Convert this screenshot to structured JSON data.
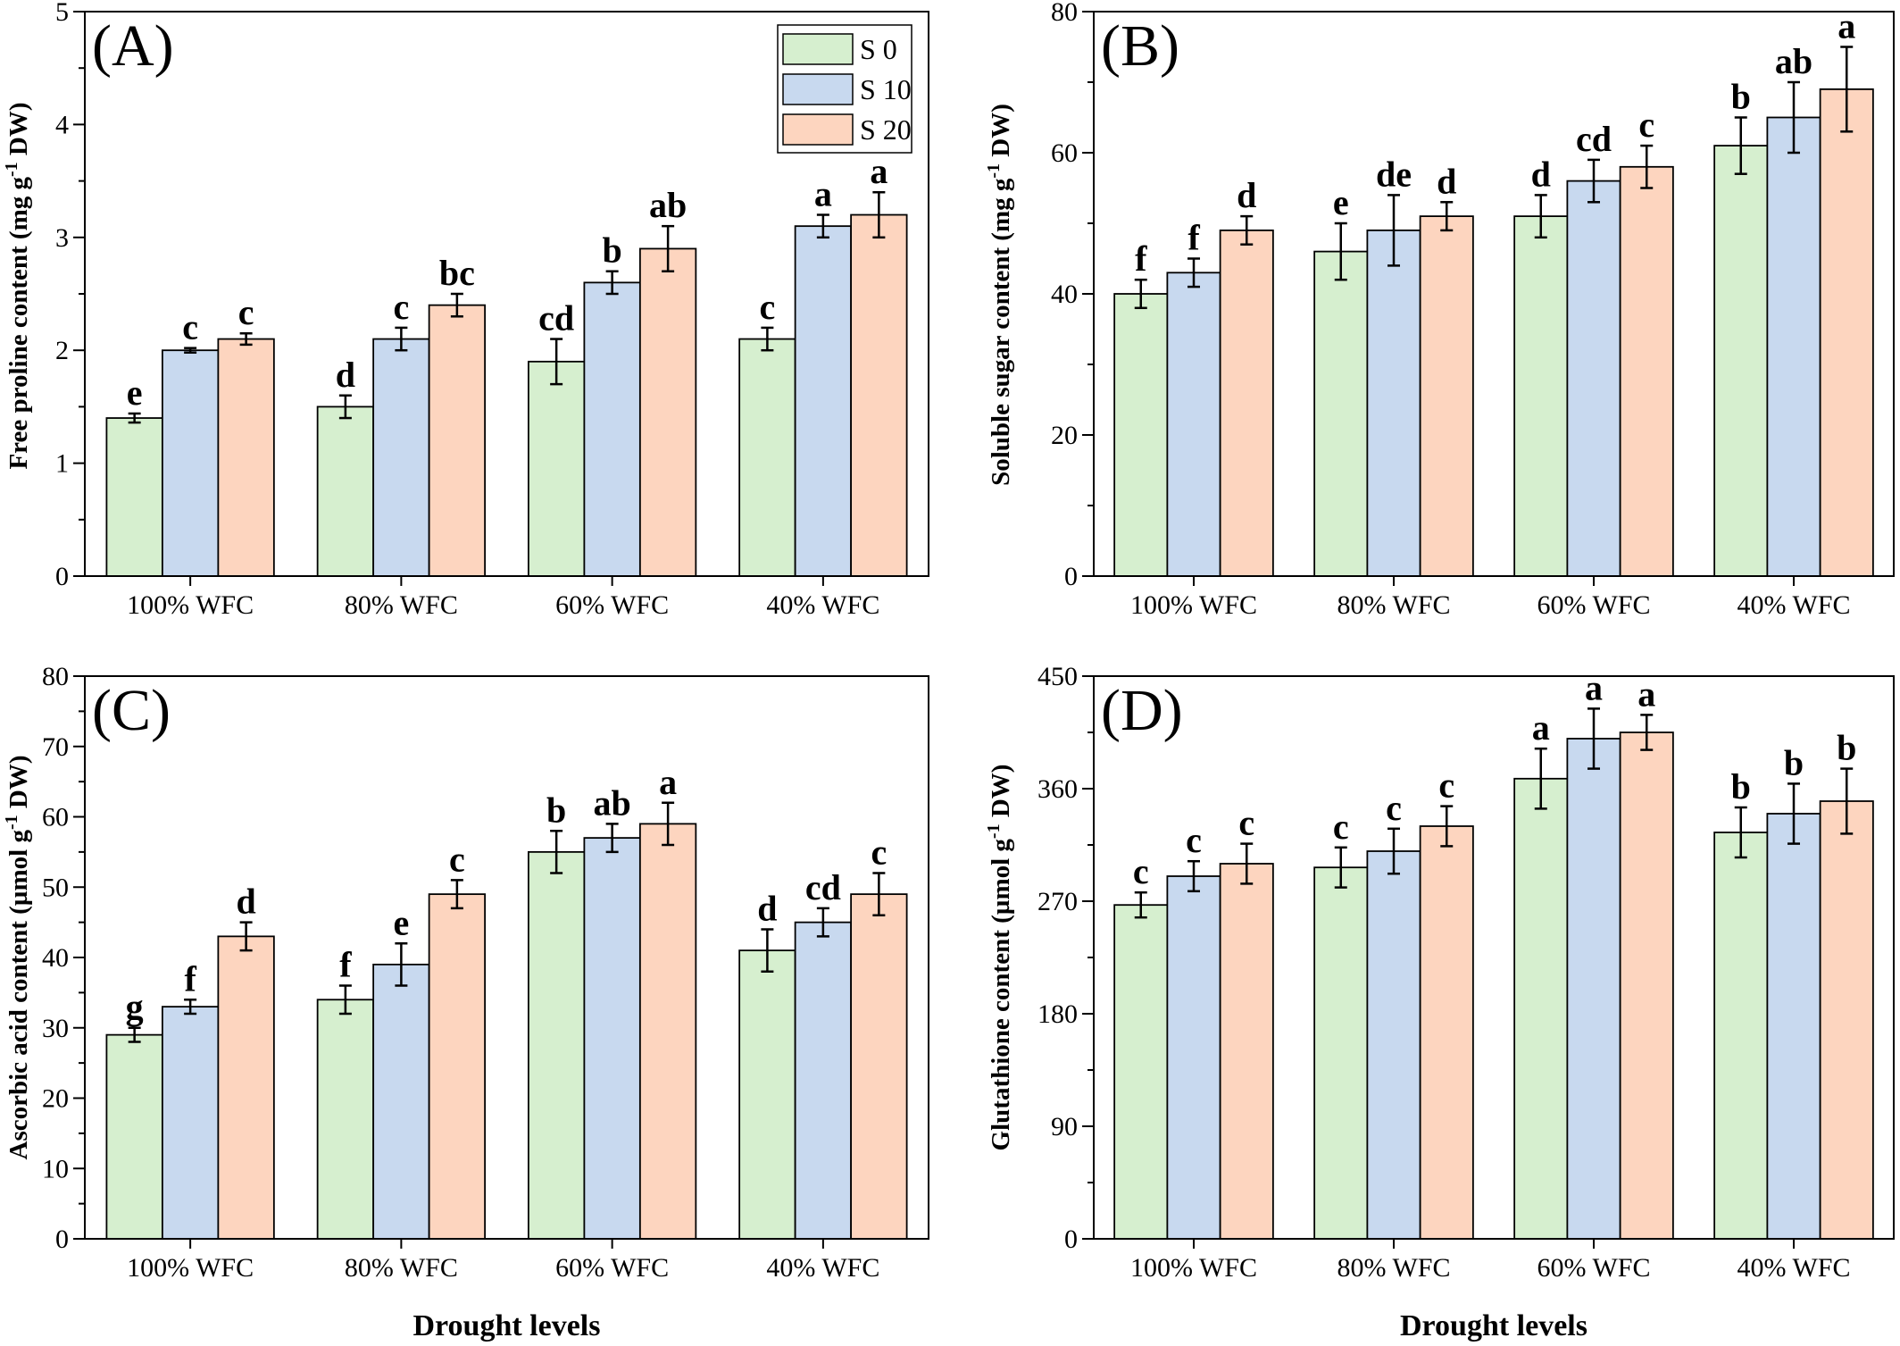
{
  "chart_data": [
    {
      "type": "bar",
      "panel_label": "(A)",
      "categories": [
        "100% WFC",
        "80% WFC",
        "60% WFC",
        "40% WFC"
      ],
      "ylabel": "Free proline content (mg g",
      "ylabel_sup": "-1",
      "ylabel_tail": " DW)",
      "xlabel": "",
      "ylim": [
        0,
        5
      ],
      "yticks": [
        0,
        1,
        2,
        3,
        4,
        5
      ],
      "legend": true,
      "legend_position": "top-right",
      "series": [
        {
          "name": "S 0",
          "values": [
            1.4,
            1.5,
            1.9,
            2.1
          ],
          "errors": [
            0.04,
            0.1,
            0.2,
            0.1
          ],
          "letters": [
            "e",
            "d",
            "cd",
            "c"
          ]
        },
        {
          "name": "S 10",
          "values": [
            2.0,
            2.1,
            2.6,
            3.1
          ],
          "errors": [
            0.02,
            0.1,
            0.1,
            0.1
          ],
          "letters": [
            "c",
            "c",
            "b",
            "a"
          ]
        },
        {
          "name": "S 20",
          "values": [
            2.1,
            2.4,
            2.9,
            3.2
          ],
          "errors": [
            0.05,
            0.1,
            0.2,
            0.2
          ],
          "letters": [
            "c",
            "bc",
            "ab",
            "a"
          ]
        }
      ]
    },
    {
      "type": "bar",
      "panel_label": "(B)",
      "categories": [
        "100% WFC",
        "80% WFC",
        "60% WFC",
        "40% WFC"
      ],
      "ylabel": "Soluble sugar content (mg g",
      "ylabel_sup": "-1",
      "ylabel_tail": " DW)",
      "xlabel": "",
      "ylim": [
        0,
        80
      ],
      "yticks": [
        0,
        20,
        40,
        60,
        80
      ],
      "legend": false,
      "series": [
        {
          "name": "S 0",
          "values": [
            40,
            46,
            51,
            61
          ],
          "errors": [
            2,
            4,
            3,
            4
          ],
          "letters": [
            "f",
            "e",
            "d",
            "b"
          ]
        },
        {
          "name": "S 10",
          "values": [
            43,
            49,
            56,
            65
          ],
          "errors": [
            2,
            5,
            3,
            5
          ],
          "letters": [
            "f",
            "de",
            "cd",
            "ab"
          ]
        },
        {
          "name": "S 20",
          "values": [
            49,
            51,
            58,
            69
          ],
          "errors": [
            2,
            2,
            3,
            6
          ],
          "letters": [
            "d",
            "d",
            "c",
            "a"
          ]
        }
      ]
    },
    {
      "type": "bar",
      "panel_label": "(C)",
      "categories": [
        "100% WFC",
        "80% WFC",
        "60% WFC",
        "40% WFC"
      ],
      "ylabel": "Ascorbic acid content (µmol g",
      "ylabel_sup": "-1",
      "ylabel_tail": " DW)",
      "xlabel": "Drought levels",
      "ylim": [
        0,
        80
      ],
      "yticks": [
        0,
        10,
        20,
        30,
        40,
        50,
        60,
        70,
        80
      ],
      "legend": false,
      "series": [
        {
          "name": "S 0",
          "values": [
            29,
            34,
            55,
            41
          ],
          "errors": [
            1,
            2,
            3,
            3
          ],
          "letters": [
            "g",
            "f",
            "b",
            "d"
          ]
        },
        {
          "name": "S 10",
          "values": [
            33,
            39,
            57,
            45
          ],
          "errors": [
            1,
            3,
            2,
            2
          ],
          "letters": [
            "f",
            "e",
            "ab",
            "cd"
          ]
        },
        {
          "name": "S 20",
          "values": [
            43,
            49,
            59,
            49
          ],
          "errors": [
            2,
            2,
            3,
            3
          ],
          "letters": [
            "d",
            "c",
            "a",
            "c"
          ]
        }
      ]
    },
    {
      "type": "bar",
      "panel_label": "(D)",
      "categories": [
        "100% WFC",
        "80% WFC",
        "60% WFC",
        "40% WFC"
      ],
      "ylabel": "Glutathione content (µmol g",
      "ylabel_sup": "-1",
      "ylabel_tail": " DW)",
      "xlabel": "Drought levels",
      "ylim": [
        0,
        450
      ],
      "yticks": [
        0,
        90,
        180,
        270,
        360,
        450
      ],
      "legend": false,
      "series": [
        {
          "name": "S 0",
          "values": [
            267,
            297,
            368,
            325
          ],
          "errors": [
            10,
            16,
            24,
            20
          ],
          "letters": [
            "c",
            "c",
            "a",
            "b"
          ]
        },
        {
          "name": "S 10",
          "values": [
            290,
            310,
            400,
            340
          ],
          "errors": [
            12,
            18,
            24,
            24
          ],
          "letters": [
            "c",
            "c",
            "a",
            "b"
          ]
        },
        {
          "name": "S 20",
          "values": [
            300,
            330,
            405,
            350
          ],
          "errors": [
            16,
            16,
            14,
            26
          ],
          "letters": [
            "c",
            "c",
            "a",
            "b"
          ]
        }
      ]
    }
  ],
  "colors": {
    "series": [
      "#d6efcf",
      "#c8d9ef",
      "#fdd5bf"
    ],
    "stroke": "#000000"
  }
}
